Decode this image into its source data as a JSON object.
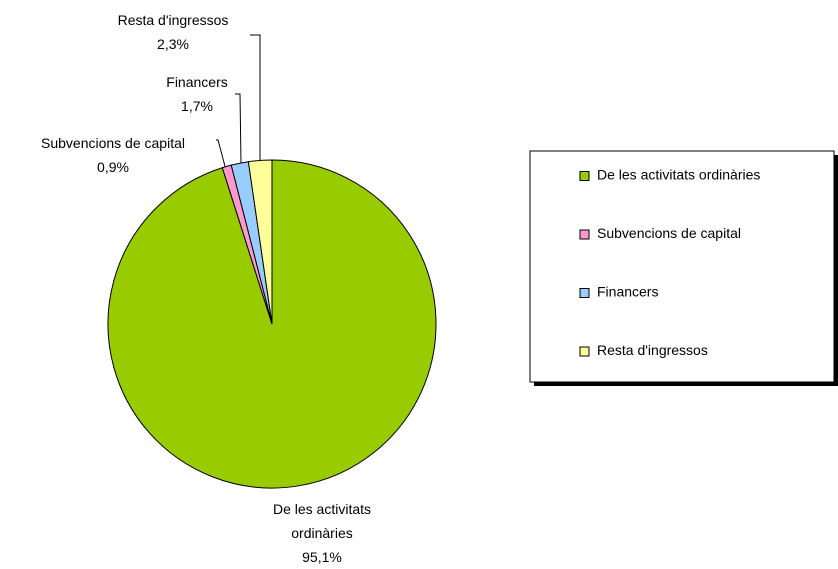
{
  "chart_data": {
    "type": "pie",
    "categories": [
      "De les activitats ordinàries",
      "Subvencions de capital",
      "Financers",
      "Resta d'ingressos"
    ],
    "values": [
      95.1,
      0.9,
      1.7,
      2.3
    ],
    "value_labels": [
      "95,1%",
      "0,9%",
      "1,7%",
      "2,3%"
    ],
    "colors": [
      "#99cc00",
      "#ff99cc",
      "#99ccff",
      "#ffff99"
    ],
    "legend": "right"
  }
}
